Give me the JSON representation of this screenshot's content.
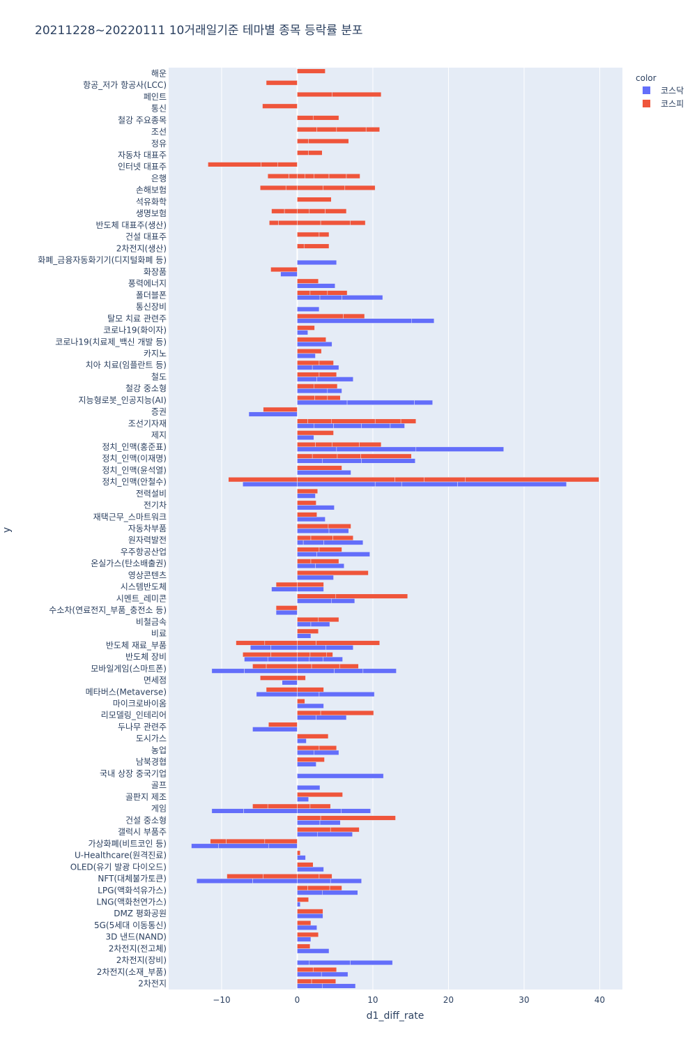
{
  "chart_data": {
    "type": "bar",
    "orientation": "horizontal",
    "barmode": "relative",
    "title": "20211228~20220111 10거래일기준 테마별 종목 등락률 분포",
    "xlabel": "d1_diff_rate",
    "ylabel": "y",
    "xlim": [
      -17,
      43
    ],
    "xticks": [
      -10,
      0,
      10,
      20,
      30,
      40
    ],
    "xtick_labels": [
      "−10",
      "0",
      "10",
      "20",
      "30",
      "40"
    ],
    "grid": true,
    "legend_title": "color",
    "legend_position": "top-right",
    "series": [
      {
        "name": "코스닥",
        "color": "#636efa"
      },
      {
        "name": "코스피",
        "color": "#ef553b"
      }
    ],
    "categories": [
      {
        "name": "해운",
        "kospi": [
          3.7
        ],
        "kosdaq": []
      },
      {
        "name": "항공_저가 항공사(LCC)",
        "kospi": [
          -4.1
        ],
        "kosdaq": []
      },
      {
        "name": "페인트",
        "kospi": [
          4.6,
          6.5
        ],
        "kosdaq": []
      },
      {
        "name": "통신",
        "kospi": [
          -4.6
        ],
        "kosdaq": []
      },
      {
        "name": "철강 주요종목",
        "kospi": [
          2.1,
          3.4
        ],
        "kosdaq": []
      },
      {
        "name": "조선",
        "kospi": [
          2.6,
          2.6,
          3.9,
          1.8
        ],
        "kosdaq": []
      },
      {
        "name": "정유",
        "kospi": [
          1.5,
          5.3
        ],
        "kosdaq": []
      },
      {
        "name": "자동차 대표주",
        "kospi": [
          1.5,
          1.8
        ],
        "kosdaq": []
      },
      {
        "name": "인터넷 대표주",
        "kospi": [
          -2.6,
          -2.2,
          -7.0
        ],
        "kosdaq": []
      },
      {
        "name": "은행",
        "kospi": [
          1.0,
          1.2,
          2.0,
          2.3,
          1.8,
          -1.1,
          -2.8
        ],
        "kosdaq": []
      },
      {
        "name": "손해보험",
        "kospi": [
          3.4,
          2.9,
          4.0,
          -1.5,
          -3.4
        ],
        "kosdaq": []
      },
      {
        "name": "석유화학",
        "kospi": [
          4.5
        ],
        "kosdaq": []
      },
      {
        "name": "생명보험",
        "kospi": [
          1.6,
          2.1,
          2.8,
          -1.7,
          -1.7
        ],
        "kosdaq": []
      },
      {
        "name": "반도체 대표주(생산)",
        "kospi": [
          3.1,
          3.9,
          2.0,
          -2.5,
          -1.2
        ],
        "kosdaq": []
      },
      {
        "name": "건설 대표주",
        "kospi": [
          2.9,
          1.3
        ],
        "kosdaq": []
      },
      {
        "name": "2차전지(생산)",
        "kospi": [
          0.9,
          3.3
        ],
        "kosdaq": []
      },
      {
        "name": "화폐_금융자동화기기(디지털화폐 등)",
        "kospi": [],
        "kosdaq": [
          5.2
        ]
      },
      {
        "name": "화장품",
        "kospi": [
          -3.5
        ],
        "kosdaq": [
          -2.2
        ]
      },
      {
        "name": "풍력에너지",
        "kospi": [
          2.8
        ],
        "kosdaq": [
          5.0
        ]
      },
      {
        "name": "폴더블폰",
        "kospi": [
          1.7,
          2.3,
          2.6
        ],
        "kosdaq": [
          3.0,
          2.9,
          5.4
        ]
      },
      {
        "name": "통신장비",
        "kospi": [],
        "kosdaq": [
          2.9
        ]
      },
      {
        "name": "탈모 치료 관련주",
        "kospi": [
          6.1,
          2.8
        ],
        "kosdaq": [
          15.1,
          3.0
        ]
      },
      {
        "name": "코로나19(화이자)",
        "kospi": [
          2.3
        ],
        "kosdaq": [
          1.4
        ]
      },
      {
        "name": "코로나19(치료제_백신 개발 등)",
        "kospi": [
          3.8
        ],
        "kosdaq": [
          4.6
        ]
      },
      {
        "name": "카지노",
        "kospi": [
          3.2
        ],
        "kosdaq": [
          2.4
        ]
      },
      {
        "name": "치아 치료(임플란트 등)",
        "kospi": [
          2.9,
          1.9
        ],
        "kosdaq": [
          2.0,
          3.5
        ]
      },
      {
        "name": "철도",
        "kospi": [
          2.9,
          2.3
        ],
        "kosdaq": [
          2.6,
          4.8
        ]
      },
      {
        "name": "철강 중소형",
        "kospi": [
          2.2,
          3.1
        ],
        "kosdaq": [
          4.0,
          1.9
        ]
      },
      {
        "name": "지능형로봇_인공지능(AI)",
        "kospi": [
          2.3,
          1.7,
          1.7
        ],
        "kosdaq": [
          6.6,
          8.9,
          2.4
        ]
      },
      {
        "name": "증권",
        "kospi": [
          -4.5
        ],
        "kosdaq": [
          -6.4
        ]
      },
      {
        "name": "조선기자재",
        "kospi": [
          1.4,
          3.1,
          5.8,
          3.4,
          2.0
        ],
        "kosdaq": [
          2.2,
          2.6,
          3.7,
          3.8,
          1.9
        ]
      },
      {
        "name": "제지",
        "kospi": [
          4.8
        ],
        "kosdaq": [
          2.2
        ]
      },
      {
        "name": "정치_인맥(홍준표)",
        "kospi": [
          2.4,
          2.2,
          3.6,
          2.9
        ],
        "kosdaq": [
          5.2,
          10.5,
          11.6
        ]
      },
      {
        "name": "정치_인맥(이재명)",
        "kospi": [
          2.0,
          3.3,
          3.1,
          6.7
        ],
        "kosdaq": [
          3.3,
          5.2,
          7.1
        ]
      },
      {
        "name": "정치_인맥(윤석열)",
        "kospi": [
          5.9
        ],
        "kosdaq": [
          7.1
        ]
      },
      {
        "name": "정치_인맥(안철수)",
        "kospi": [
          12.9,
          3.9,
          5.4,
          17.7,
          -9.1
        ],
        "kosdaq": [
          10.3,
          3.5,
          7.4,
          14.4,
          -7.2
        ]
      },
      {
        "name": "전력설비",
        "kospi": [
          2.7
        ],
        "kosdaq": [
          2.4
        ]
      },
      {
        "name": "전기차",
        "kospi": [
          2.5
        ],
        "kosdaq": [
          4.9
        ]
      },
      {
        "name": "재택근무_스마트워크",
        "kospi": [
          2.6
        ],
        "kosdaq": [
          3.7
        ]
      },
      {
        "name": "자동차부품",
        "kospi": [
          4.1,
          3.0
        ],
        "kosdaq": [
          4.2,
          2.6
        ]
      },
      {
        "name": "원자력발전",
        "kospi": [
          1.8,
          2.9,
          2.7
        ],
        "kosdaq": [
          0.8,
          2.7,
          5.2
        ]
      },
      {
        "name": "우주항공산업",
        "kospi": [
          2.9,
          3.0
        ],
        "kosdaq": [
          2.6,
          7.0
        ]
      },
      {
        "name": "온실가스(탄소배출권)",
        "kospi": [
          1.8,
          3.7
        ],
        "kosdaq": [
          2.4,
          3.8
        ]
      },
      {
        "name": "영상콘텐츠",
        "kospi": [
          9.4
        ],
        "kosdaq": [
          4.8
        ]
      },
      {
        "name": "시스템반도체",
        "kospi": [
          3.5,
          -2.8
        ],
        "kosdaq": [
          3.5,
          -3.4
        ]
      },
      {
        "name": "시멘트_레미콘",
        "kospi": [
          5.1,
          9.5
        ],
        "kosdaq": [
          4.5,
          3.1
        ]
      },
      {
        "name": "수소차(연료전지_부품_충전소 등)",
        "kospi": [
          -2.8
        ],
        "kosdaq": [
          -2.8
        ]
      },
      {
        "name": "비철금속",
        "kospi": [
          2.8,
          2.7
        ],
        "kosdaq": [
          1.8,
          2.5
        ]
      },
      {
        "name": "비료",
        "kospi": [
          2.8
        ],
        "kosdaq": [
          1.8
        ]
      },
      {
        "name": "반도체 재료_부품",
        "kospi": [
          2.5,
          8.4,
          -4.3,
          -3.8
        ],
        "kosdaq": [
          3.8,
          3.6,
          -3.5,
          -2.7
        ]
      },
      {
        "name": "반도체 장비",
        "kospi": [
          1.7,
          2.2,
          0.8,
          -3.5,
          -3.7
        ],
        "kosdaq": [
          1.6,
          1.8,
          2.6,
          -3.9,
          -3.1
        ]
      },
      {
        "name": "모바일게임(스마트폰)",
        "kospi": [
          1.9,
          3.7,
          2.5,
          -4.1,
          -1.8
        ],
        "kosdaq": [
          4.9,
          3.8,
          4.4,
          -7.0,
          -4.3
        ]
      },
      {
        "name": "면세점",
        "kospi": [
          1.1,
          -4.9
        ],
        "kosdaq": [
          -2.0
        ]
      },
      {
        "name": "메타버스(Metaverse)",
        "kospi": [
          3.5,
          -4.1
        ],
        "kosdaq": [
          2.9,
          7.3,
          -5.4
        ]
      },
      {
        "name": "마이크로바이옴",
        "kospi": [
          1.0
        ],
        "kosdaq": [
          3.5
        ]
      },
      {
        "name": "리모델링_인테리어",
        "kospi": [
          3.1,
          7.0
        ],
        "kosdaq": [
          2.5,
          4.0
        ]
      },
      {
        "name": "두나무 관련주",
        "kospi": [
          -3.8
        ],
        "kosdaq": [
          -5.9
        ]
      },
      {
        "name": "도시가스",
        "kospi": [
          4.1
        ],
        "kosdaq": [
          1.2
        ]
      },
      {
        "name": "농업",
        "kospi": [
          2.9,
          2.3
        ],
        "kosdaq": [
          2.2,
          3.3
        ]
      },
      {
        "name": "남북경협",
        "kospi": [
          3.6
        ],
        "kosdaq": [
          2.5
        ]
      },
      {
        "name": "국내 상장 중국기업",
        "kospi": [],
        "kosdaq": [
          11.4
        ]
      },
      {
        "name": "골프",
        "kospi": [],
        "kosdaq": [
          3.0
        ]
      },
      {
        "name": "골판지 제조",
        "kospi": [
          6.0
        ],
        "kosdaq": [
          1.5
        ]
      },
      {
        "name": "게임",
        "kospi": [
          1.7,
          2.7,
          -3.9,
          -2.0
        ],
        "kosdaq": [
          5.8,
          3.9,
          -7.1,
          -4.2
        ]
      },
      {
        "name": "건설 중소형",
        "kospi": [
          3.1,
          9.9
        ],
        "kosdaq": [
          3.0,
          2.7
        ]
      },
      {
        "name": "갤럭시 부품주",
        "kospi": [
          4.4,
          3.8
        ],
        "kosdaq": [
          2.7,
          4.6
        ]
      },
      {
        "name": "가상화폐(비트코인 등)",
        "kospi": [
          -4.3,
          -5.1,
          -2.1
        ],
        "kosdaq": [
          -3.8,
          -6.6,
          -3.6
        ]
      },
      {
        "name": "U-Healthcare(원격진료)",
        "kospi": [
          0.4
        ],
        "kosdaq": [
          1.1
        ]
      },
      {
        "name": "OLED(유기 발광 다이오드)",
        "kospi": [
          2.1
        ],
        "kosdaq": [
          3.5
        ]
      },
      {
        "name": "NFT(대체불가토큰)",
        "kospi": [
          2.9,
          1.7,
          -4.5,
          -4.8
        ],
        "kosdaq": [
          4.4,
          4.1,
          -5.9,
          -7.4
        ]
      },
      {
        "name": "LPG(액화석유가스)",
        "kospi": [
          1.4,
          2.9,
          1.6
        ],
        "kosdaq": [
          3.3,
          4.7
        ]
      },
      {
        "name": "LNG(액화천연가스)",
        "kospi": [
          1.5
        ],
        "kosdaq": [
          0.4
        ]
      },
      {
        "name": "DMZ 평화공원",
        "kospi": [
          3.4
        ],
        "kosdaq": [
          3.4
        ]
      },
      {
        "name": "5G(5세대 이동통신)",
        "kospi": [
          1.8
        ],
        "kosdaq": [
          2.6
        ]
      },
      {
        "name": "3D 낸드(NAND)",
        "kospi": [
          2.8
        ],
        "kosdaq": [
          1.8
        ]
      },
      {
        "name": "2차전지(전고체)",
        "kospi": [
          1.7
        ],
        "kosdaq": [
          4.2
        ]
      },
      {
        "name": "2차전지(장비)",
        "kospi": [],
        "kosdaq": [
          1.6,
          5.4,
          5.6
        ]
      },
      {
        "name": "2차전지(소재_부품)",
        "kospi": [
          2.1,
          3.1
        ],
        "kosdaq": [
          3.2,
          3.5
        ]
      },
      {
        "name": "2차전지",
        "kospi": [
          1.9,
          3.2
        ],
        "kosdaq": [
          3.3,
          4.4
        ]
      }
    ]
  }
}
